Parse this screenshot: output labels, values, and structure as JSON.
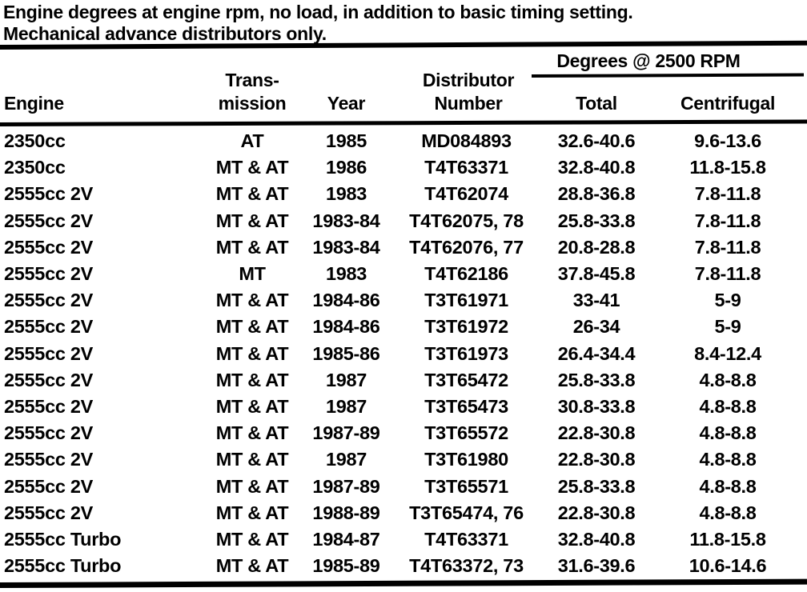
{
  "page": {
    "title_line1": "Engine degrees at engine rpm, no load, in addition to basic timing setting.",
    "title_line2": "Mechanical advance distributors only."
  },
  "colors": {
    "text": "#000000",
    "background": "#ffffff"
  },
  "table": {
    "span_header": "Degrees @ 2500 RPM",
    "headers": {
      "engine": "Engine",
      "transmission_line1": "Trans-",
      "transmission_line2": "mission",
      "year": "Year",
      "distributor_line1": "Distributor",
      "distributor_line2": "Number",
      "total": "Total",
      "centrifugal": "Centrifugal"
    },
    "rows": [
      {
        "engine": "2350cc",
        "transmission": "AT",
        "year": "1985",
        "distributor": "MD084893",
        "total": "32.6-40.6",
        "centrifugal": "9.6-13.6"
      },
      {
        "engine": "2350cc",
        "transmission": "MT & AT",
        "year": "1986",
        "distributor": "T4T63371",
        "total": "32.8-40.8",
        "centrifugal": "11.8-15.8"
      },
      {
        "engine": "2555cc 2V",
        "transmission": "MT & AT",
        "year": "1983",
        "distributor": "T4T62074",
        "total": "28.8-36.8",
        "centrifugal": "7.8-11.8"
      },
      {
        "engine": "2555cc 2V",
        "transmission": "MT & AT",
        "year": "1983-84",
        "distributor": "T4T62075, 78",
        "total": "25.8-33.8",
        "centrifugal": "7.8-11.8"
      },
      {
        "engine": "2555cc 2V",
        "transmission": "MT & AT",
        "year": "1983-84",
        "distributor": "T4T62076, 77",
        "total": "20.8-28.8",
        "centrifugal": "7.8-11.8"
      },
      {
        "engine": "2555cc 2V",
        "transmission": "MT",
        "year": "1983",
        "distributor": "T4T62186",
        "total": "37.8-45.8",
        "centrifugal": "7.8-11.8"
      },
      {
        "engine": "2555cc 2V",
        "transmission": "MT & AT",
        "year": "1984-86",
        "distributor": "T3T61971",
        "total": "33-41",
        "centrifugal": "5-9"
      },
      {
        "engine": "2555cc 2V",
        "transmission": "MT & AT",
        "year": "1984-86",
        "distributor": "T3T61972",
        "total": "26-34",
        "centrifugal": "5-9"
      },
      {
        "engine": "2555cc 2V",
        "transmission": "MT & AT",
        "year": "1985-86",
        "distributor": "T3T61973",
        "total": "26.4-34.4",
        "centrifugal": "8.4-12.4"
      },
      {
        "engine": "2555cc 2V",
        "transmission": "MT & AT",
        "year": "1987",
        "distributor": "T3T65472",
        "total": "25.8-33.8",
        "centrifugal": "4.8-8.8"
      },
      {
        "engine": "2555cc 2V",
        "transmission": "MT & AT",
        "year": "1987",
        "distributor": "T3T65473",
        "total": "30.8-33.8",
        "centrifugal": "4.8-8.8"
      },
      {
        "engine": "2555cc 2V",
        "transmission": "MT & AT",
        "year": "1987-89",
        "distributor": "T3T65572",
        "total": "22.8-30.8",
        "centrifugal": "4.8-8.8"
      },
      {
        "engine": "2555cc 2V",
        "transmission": "MT & AT",
        "year": "1987",
        "distributor": "T3T61980",
        "total": "22.8-30.8",
        "centrifugal": "4.8-8.8"
      },
      {
        "engine": "2555cc 2V",
        "transmission": "MT & AT",
        "year": "1987-89",
        "distributor": "T3T65571",
        "total": "25.8-33.8",
        "centrifugal": "4.8-8.8"
      },
      {
        "engine": "2555cc 2V",
        "transmission": "MT & AT",
        "year": "1988-89",
        "distributor": "T3T65474, 76",
        "total": "22.8-30.8",
        "centrifugal": "4.8-8.8"
      },
      {
        "engine": "2555cc Turbo",
        "transmission": "MT & AT",
        "year": "1984-87",
        "distributor": "T4T63371",
        "total": "32.8-40.8",
        "centrifugal": "11.8-15.8"
      },
      {
        "engine": "2555cc Turbo",
        "transmission": "MT & AT",
        "year": "1985-89",
        "distributor": "T4T63372, 73",
        "total": "31.6-39.6",
        "centrifugal": "10.6-14.6"
      }
    ]
  }
}
